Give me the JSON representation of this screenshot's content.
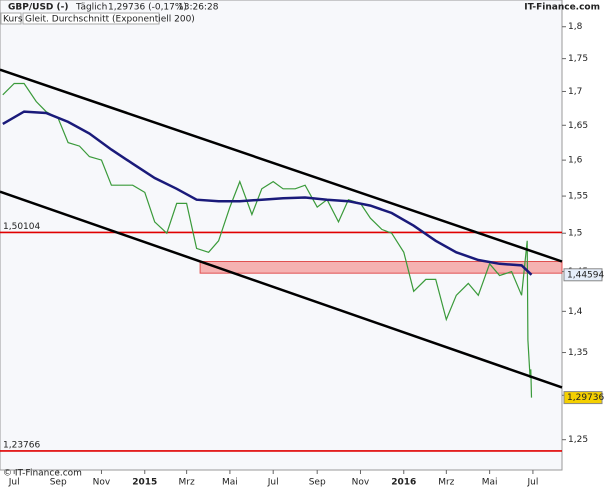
{
  "header": {
    "symbol": "GBP/USD (-)",
    "period": "Täglich",
    "quote": "1,29736 (-0,17%)",
    "time": "13:26:28",
    "source": "IT-Finance.com"
  },
  "legend_label": "Kurs",
  "footer": "© IT-Finance.com",
  "chart_data": {
    "type": "line",
    "log_scale": true,
    "xlim": [
      "2014-06-11",
      "2016-08-11"
    ],
    "xticks": [
      {
        "value": "2014-07-01",
        "label": "Jul"
      },
      {
        "value": "2014-09-01",
        "label": "Sep"
      },
      {
        "value": "2014-11-01",
        "label": "Nov"
      },
      {
        "value": "2015-01-01",
        "label": "2015"
      },
      {
        "value": "2015-03-01",
        "label": "Mrz"
      },
      {
        "value": "2015-05-01",
        "label": "Mai"
      },
      {
        "value": "2015-07-01",
        "label": "Jul"
      },
      {
        "value": "2015-09-01",
        "label": "Sep"
      },
      {
        "value": "2015-11-01",
        "label": "Nov"
      },
      {
        "value": "2016-01-01",
        "label": "2016"
      },
      {
        "value": "2016-03-01",
        "label": "Mrz"
      },
      {
        "value": "2016-05-01",
        "label": "Mai"
      },
      {
        "value": "2016-07-01",
        "label": "Jul"
      }
    ],
    "ylim": [
      1.217,
      1.843
    ],
    "yticks": [
      {
        "value": 1.25,
        "label": "1,25"
      },
      {
        "value": 1.3,
        "label": "1,3"
      },
      {
        "value": 1.35,
        "label": "1,35"
      },
      {
        "value": 1.4,
        "label": "1,4"
      },
      {
        "value": 1.45,
        "label": "1,45"
      },
      {
        "value": 1.5,
        "label": "1,5"
      },
      {
        "value": 1.55,
        "label": "1,55"
      },
      {
        "value": 1.6,
        "label": "1,6"
      },
      {
        "value": 1.65,
        "label": "1,65"
      },
      {
        "value": 1.7,
        "label": "1,7"
      },
      {
        "value": 1.75,
        "label": "1,75"
      },
      {
        "value": 1.8,
        "label": "1,8"
      }
    ],
    "series": [
      {
        "name": "Kurs",
        "color": "#3a9a3a",
        "width": 1.2,
        "x": [
          "2014-06-15",
          "2014-07-01",
          "2014-07-15",
          "2014-08-01",
          "2014-08-15",
          "2014-09-01",
          "2014-09-15",
          "2014-10-01",
          "2014-10-15",
          "2014-11-01",
          "2014-11-15",
          "2014-12-01",
          "2014-12-15",
          "2015-01-01",
          "2015-01-15",
          "2015-02-01",
          "2015-02-15",
          "2015-03-01",
          "2015-03-15",
          "2015-04-01",
          "2015-04-15",
          "2015-05-01",
          "2015-05-15",
          "2015-06-01",
          "2015-06-15",
          "2015-07-01",
          "2015-07-15",
          "2015-08-01",
          "2015-08-15",
          "2015-09-01",
          "2015-09-15",
          "2015-10-01",
          "2015-10-15",
          "2015-11-01",
          "2015-11-15",
          "2015-12-01",
          "2015-12-15",
          "2016-01-01",
          "2016-01-15",
          "2016-02-01",
          "2016-02-15",
          "2016-03-01",
          "2016-03-15",
          "2016-04-01",
          "2016-04-15",
          "2016-05-01",
          "2016-05-15",
          "2016-06-01",
          "2016-06-15",
          "2016-06-23",
          "2016-06-24",
          "2016-06-27",
          "2016-06-28",
          "2016-06-29"
        ],
        "values": [
          1.695,
          1.712,
          1.712,
          1.685,
          1.67,
          1.66,
          1.625,
          1.62,
          1.605,
          1.6,
          1.565,
          1.565,
          1.565,
          1.555,
          1.515,
          1.5,
          1.54,
          1.54,
          1.48,
          1.475,
          1.49,
          1.535,
          1.57,
          1.525,
          1.56,
          1.57,
          1.56,
          1.56,
          1.565,
          1.535,
          1.545,
          1.515,
          1.545,
          1.54,
          1.52,
          1.505,
          1.5,
          1.475,
          1.425,
          1.44,
          1.44,
          1.39,
          1.42,
          1.435,
          1.42,
          1.46,
          1.445,
          1.45,
          1.42,
          1.49,
          1.365,
          1.32,
          1.33,
          1.29736
        ],
        "last_label": "1,29736",
        "label_fill": "#f5d000"
      },
      {
        "name": "Gleit. Durchschnitt (Exponentiell 200)",
        "color": "#1a1a7a",
        "width": 2.5,
        "x": [
          "2014-06-15",
          "2014-07-15",
          "2014-08-15",
          "2014-09-15",
          "2014-10-15",
          "2014-11-15",
          "2014-12-15",
          "2015-01-15",
          "2015-02-15",
          "2015-03-15",
          "2015-04-15",
          "2015-05-15",
          "2015-06-15",
          "2015-07-15",
          "2015-08-15",
          "2015-09-15",
          "2015-10-15",
          "2015-11-15",
          "2015-12-15",
          "2016-01-15",
          "2016-02-15",
          "2016-03-15",
          "2016-04-15",
          "2016-05-15",
          "2016-06-15",
          "2016-06-29"
        ],
        "values": [
          1.652,
          1.67,
          1.668,
          1.655,
          1.638,
          1.615,
          1.595,
          1.575,
          1.56,
          1.545,
          1.543,
          1.543,
          1.545,
          1.547,
          1.548,
          1.545,
          1.543,
          1.537,
          1.527,
          1.51,
          1.49,
          1.475,
          1.465,
          1.46,
          1.458,
          1.44594
        ],
        "last_label": "1,44594",
        "label_fill": "#e6eefa"
      }
    ],
    "hlines": [
      {
        "value": 1.50104,
        "label": "1,50104",
        "color": "#e00000"
      },
      {
        "value": 1.23766,
        "label": "1,23766",
        "color": "#e00000"
      }
    ],
    "trendlines": [
      {
        "x": [
          "2014-06-11",
          "2016-08-11"
        ],
        "y": [
          1.733,
          1.463
        ],
        "color": "#000000"
      },
      {
        "x": [
          "2014-06-11",
          "2016-08-11"
        ],
        "y": [
          1.556,
          1.309
        ],
        "color": "#000000"
      }
    ],
    "zone": {
      "x": [
        "2015-03-20",
        "2016-08-11"
      ],
      "y": [
        1.448,
        1.463
      ],
      "color": "#f4a0a0"
    }
  }
}
